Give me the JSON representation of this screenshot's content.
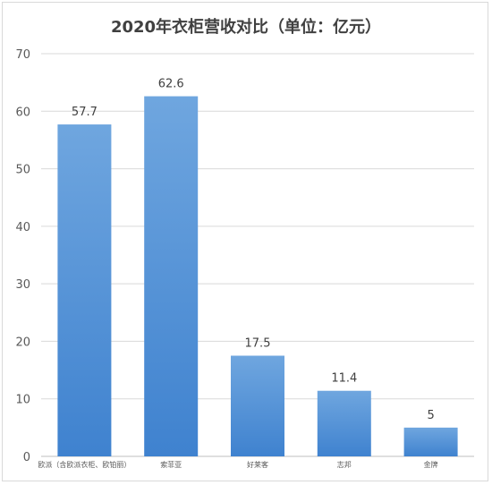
{
  "chart_data": {
    "type": "bar",
    "title": "2020年衣柜营收对比（单位：亿元）",
    "categories": [
      "欧派（含欧派衣柜、欧铂丽）",
      "索菲亚",
      "好莱客",
      "志邦",
      "金牌"
    ],
    "values": [
      57.7,
      62.6,
      17.5,
      11.4,
      5
    ],
    "value_labels": [
      "57.7",
      "62.6",
      "17.5",
      "11.4",
      "5"
    ],
    "ylim": [
      0,
      70
    ],
    "yticks": [
      "0",
      "10",
      "20",
      "30",
      "40",
      "50",
      "60",
      "70"
    ],
    "grid": true,
    "legend": "none",
    "bar_color": "#4f8fd6",
    "xlabel": "",
    "ylabel": ""
  }
}
